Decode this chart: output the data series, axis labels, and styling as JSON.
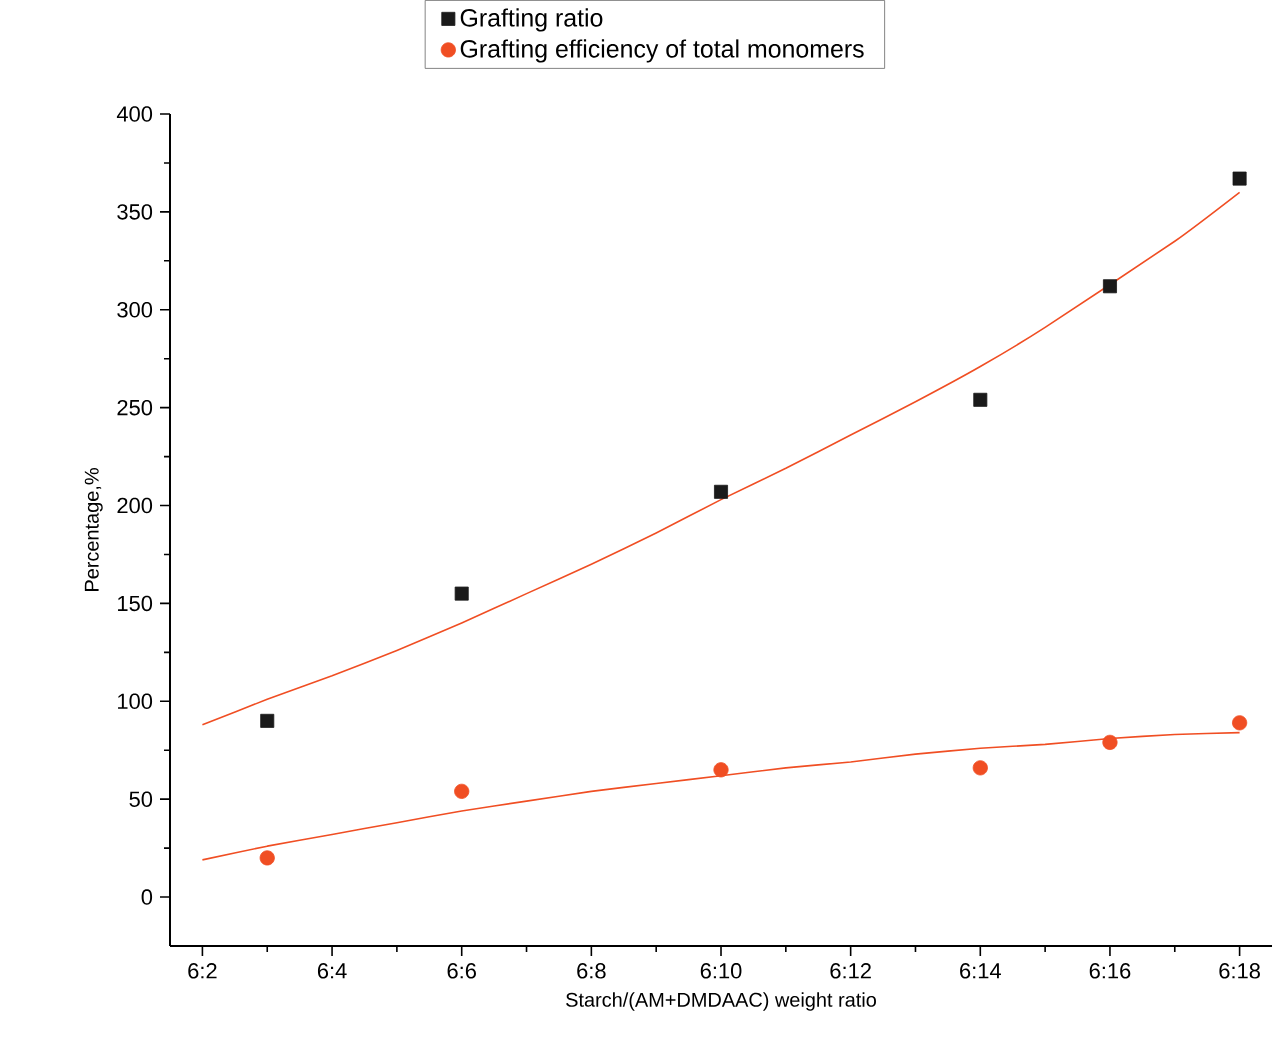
{
  "chart_data": {
    "type": "scatter",
    "xlabel": "Starch/(AM+DMDAAC) weight ratio",
    "ylabel": "Percentage,%",
    "categories": [
      "6:2",
      null,
      "6:4",
      null,
      "6:6",
      null,
      "6:8",
      null,
      "6:10",
      null,
      "6:12",
      null,
      "6:14",
      null,
      "6:16",
      null,
      "6:18"
    ],
    "ylim": [
      -25,
      400
    ],
    "yticks": [
      0,
      50,
      100,
      150,
      200,
      250,
      300,
      350,
      400
    ],
    "legend": "top",
    "series": [
      {
        "name": "Grafting ratio",
        "marker": "square",
        "color": "#1a1a1a",
        "values": [
          null,
          90,
          null,
          null,
          155,
          null,
          null,
          null,
          207,
          null,
          null,
          null,
          254,
          null,
          312,
          null,
          367
        ]
      },
      {
        "name": "Grafting efficiency of total monomers",
        "marker": "circle",
        "color": "#f04e23",
        "values": [
          null,
          20,
          null,
          null,
          54,
          null,
          null,
          null,
          65,
          null,
          null,
          null,
          66,
          null,
          79,
          null,
          89
        ]
      },
      {
        "type": "line",
        "color": "#f04e23",
        "values": [
          88,
          101,
          113,
          126,
          140,
          155,
          170,
          186,
          203,
          219,
          236,
          253,
          271,
          291,
          null,
          335,
          360
        ]
      },
      {
        "type": "line",
        "color": "#f04e23",
        "values": [
          19,
          26,
          32,
          38,
          44,
          49,
          54,
          58,
          62,
          66,
          69,
          73,
          76,
          78,
          81,
          83,
          84
        ]
      }
    ]
  }
}
